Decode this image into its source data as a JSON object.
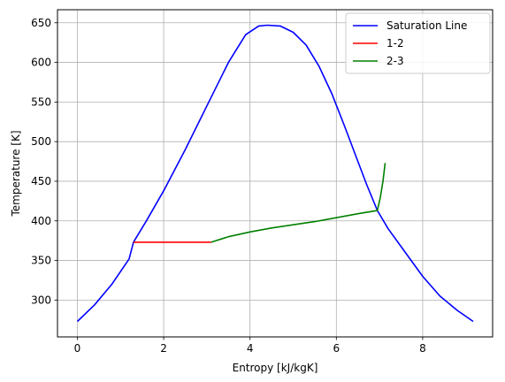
{
  "chart_data": {
    "type": "line",
    "title": "",
    "xlabel": "Entropy [kJ/kgK]",
    "ylabel": "Temperature [K]",
    "xlim": [
      -0.46,
      9.62
    ],
    "ylim": [
      253.5,
      666.5
    ],
    "xticks": [
      0,
      2,
      4,
      6,
      8
    ],
    "yticks": [
      300,
      350,
      400,
      450,
      500,
      550,
      600,
      650
    ],
    "grid": true,
    "legend_position": "top-right",
    "series": [
      {
        "name": "Saturation Line",
        "color": "#0000ff",
        "points": [
          [
            0.0,
            273
          ],
          [
            0.4,
            294
          ],
          [
            0.8,
            320
          ],
          [
            1.2,
            352
          ],
          [
            1.3,
            373
          ],
          [
            1.6,
            400
          ],
          [
            2.0,
            438
          ],
          [
            2.5,
            490
          ],
          [
            3.0,
            545
          ],
          [
            3.5,
            600
          ],
          [
            3.9,
            635
          ],
          [
            4.2,
            646
          ],
          [
            4.4,
            647
          ],
          [
            4.7,
            646
          ],
          [
            5.0,
            638
          ],
          [
            5.3,
            622
          ],
          [
            5.6,
            595
          ],
          [
            5.9,
            560
          ],
          [
            6.2,
            518
          ],
          [
            6.5,
            475
          ],
          [
            6.7,
            446
          ],
          [
            6.95,
            413
          ],
          [
            7.2,
            390
          ],
          [
            7.6,
            360
          ],
          [
            8.0,
            330
          ],
          [
            8.4,
            305
          ],
          [
            8.8,
            287
          ],
          [
            9.17,
            273
          ]
        ]
      },
      {
        "name": "1-2",
        "color": "#ff0000",
        "points": [
          [
            1.3,
            373
          ],
          [
            3.1,
            373
          ]
        ]
      },
      {
        "name": "2-3",
        "color": "#008000",
        "points": [
          [
            3.1,
            373
          ],
          [
            3.5,
            380
          ],
          [
            4.0,
            386
          ],
          [
            4.5,
            391
          ],
          [
            5.0,
            395
          ],
          [
            5.5,
            399
          ],
          [
            6.0,
            404
          ],
          [
            6.5,
            409
          ],
          [
            6.95,
            413
          ],
          [
            7.02,
            430
          ],
          [
            7.08,
            450
          ],
          [
            7.13,
            473
          ]
        ]
      }
    ]
  }
}
